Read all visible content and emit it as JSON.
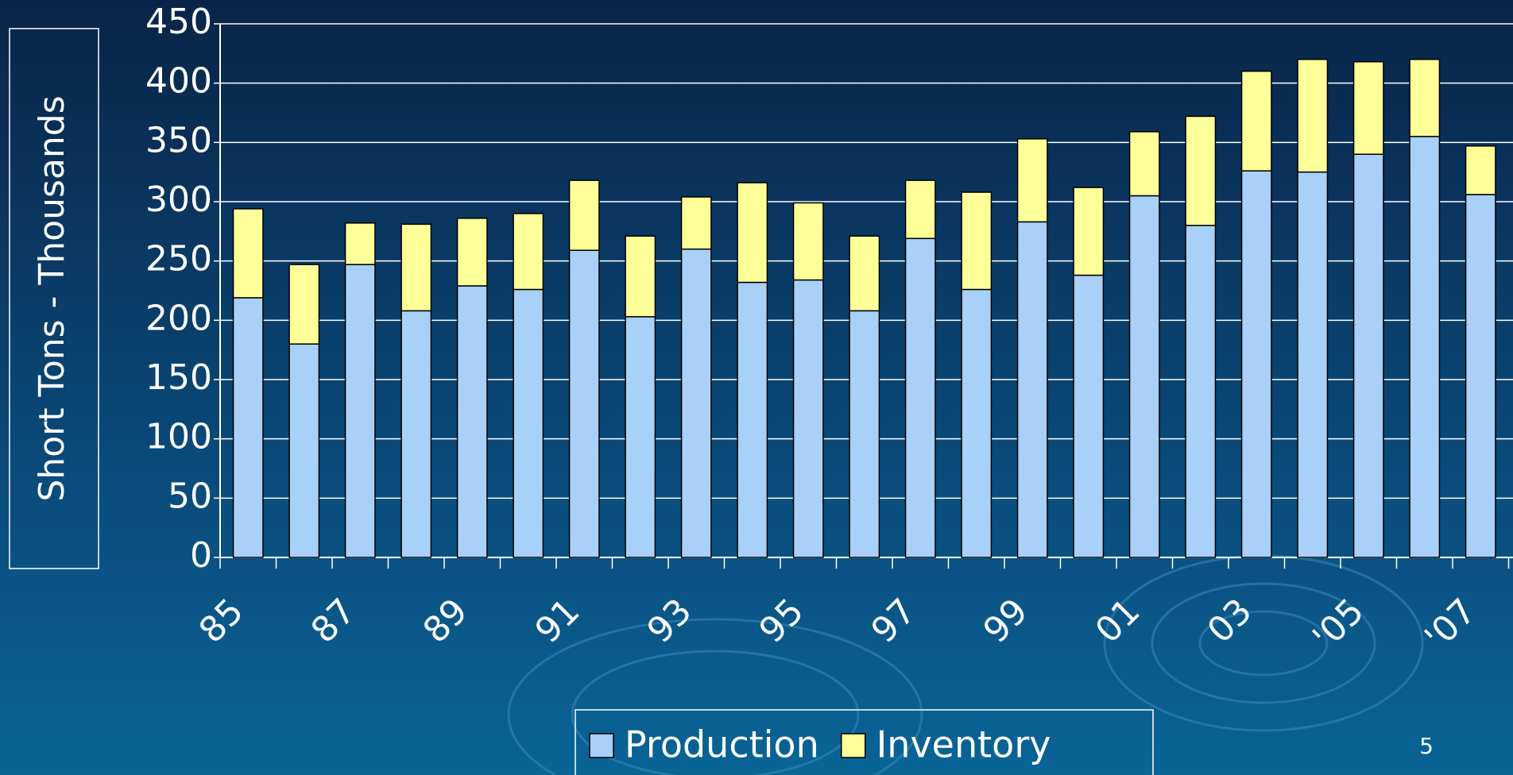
{
  "chart_data": {
    "type": "stacked_bar",
    "y_label": "Short Tons - Thousands",
    "categories": [
      "85",
      null,
      "87",
      null,
      "89",
      null,
      "91",
      null,
      "93",
      null,
      "95",
      null,
      "97",
      null,
      "99",
      null,
      "01",
      null,
      "03",
      null,
      "'05",
      null,
      "'07"
    ],
    "series": [
      {
        "name": "Production",
        "color": "#a8d0f8",
        "values": [
          219,
          180,
          247,
          208,
          229,
          226,
          259,
          203,
          260,
          232,
          234,
          208,
          269,
          226,
          283,
          238,
          305,
          280,
          326,
          325,
          340,
          355,
          306
        ]
      },
      {
        "name": "Inventory",
        "color": "#ffff99",
        "values": [
          75,
          67,
          35,
          73,
          57,
          64,
          59,
          68,
          44,
          84,
          65,
          63,
          49,
          82,
          70,
          74,
          54,
          92,
          84,
          95,
          78,
          65,
          41
        ]
      }
    ],
    "ylim": [
      0,
      450
    ],
    "yticks": [
      0,
      50,
      100,
      150,
      200,
      250,
      300,
      350,
      400,
      450
    ],
    "grid": true
  },
  "page_number": "5"
}
